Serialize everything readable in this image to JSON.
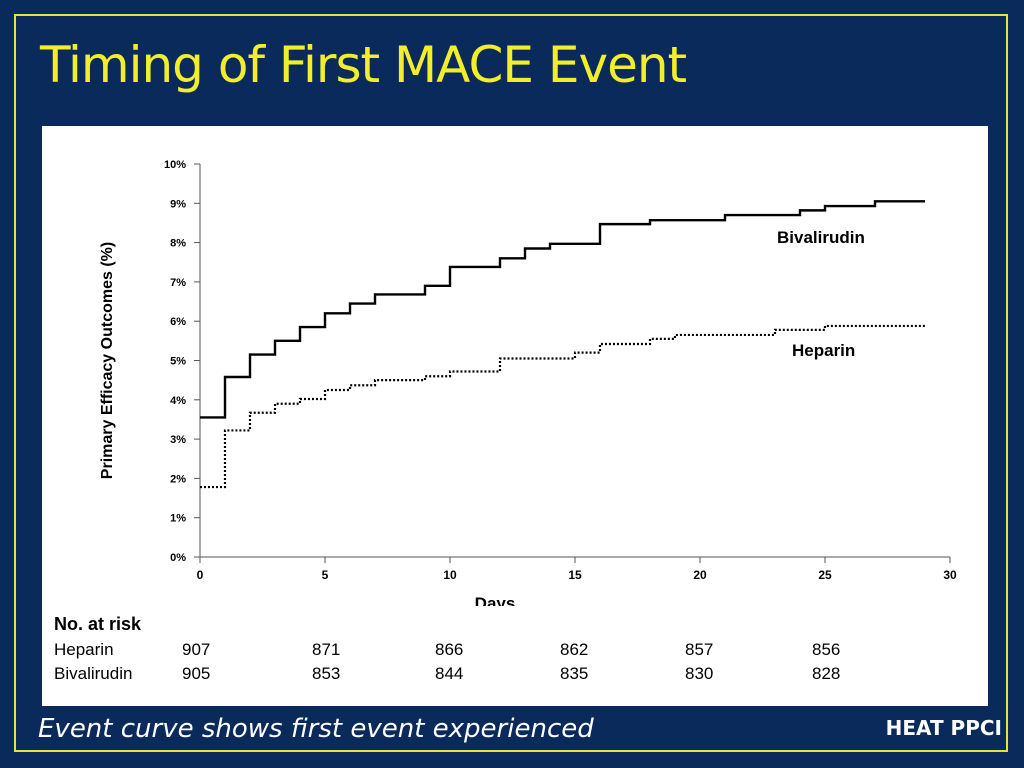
{
  "slide": {
    "title": "Timing of First MACE Event",
    "footnote": "Event curve shows first event experienced",
    "brand": "HEAT PPCI"
  },
  "chart_data": {
    "type": "line",
    "title": "",
    "xlabel": "Days",
    "ylabel": "Primary Efficacy Outcomes (%)",
    "xlim": [
      0,
      30
    ],
    "ylim": [
      0,
      10
    ],
    "xticks": [
      "0",
      "5",
      "10",
      "15",
      "20",
      "25",
      "30"
    ],
    "yticks": [
      "0%",
      "1%",
      "2%",
      "3%",
      "4%",
      "5%",
      "6%",
      "7%",
      "8%",
      "9%",
      "10%"
    ],
    "step": true,
    "series": [
      {
        "name": "Bivalirudin",
        "style": "solid",
        "color": "#000000",
        "points": [
          [
            0,
            3.55
          ],
          [
            1,
            4.58
          ],
          [
            2,
            5.15
          ],
          [
            3,
            5.5
          ],
          [
            4,
            5.85
          ],
          [
            5,
            6.2
          ],
          [
            6,
            6.45
          ],
          [
            7,
            6.68
          ],
          [
            9,
            6.9
          ],
          [
            10,
            7.38
          ],
          [
            12,
            7.6
          ],
          [
            13,
            7.85
          ],
          [
            14,
            7.97
          ],
          [
            16,
            8.47
          ],
          [
            18,
            8.57
          ],
          [
            21,
            8.7
          ],
          [
            24,
            8.82
          ],
          [
            25,
            8.93
          ],
          [
            27,
            9.05
          ],
          [
            29,
            9.05
          ]
        ]
      },
      {
        "name": "Heparin",
        "style": "dotted",
        "color": "#000000",
        "points": [
          [
            0,
            1.78
          ],
          [
            1,
            3.22
          ],
          [
            2,
            3.67
          ],
          [
            3,
            3.9
          ],
          [
            4,
            4.02
          ],
          [
            5,
            4.25
          ],
          [
            6,
            4.37
          ],
          [
            7,
            4.5
          ],
          [
            9,
            4.6
          ],
          [
            10,
            4.72
          ],
          [
            12,
            5.05
          ],
          [
            15,
            5.2
          ],
          [
            16,
            5.42
          ],
          [
            18,
            5.55
          ],
          [
            19,
            5.65
          ],
          [
            23,
            5.78
          ],
          [
            25,
            5.88
          ],
          [
            29,
            5.88
          ]
        ]
      }
    ]
  },
  "risk_table": {
    "header": "No. at risk",
    "rows": [
      {
        "label": "Heparin",
        "values": [
          "907",
          "871",
          "866",
          "862",
          "857",
          "856"
        ]
      },
      {
        "label": "Bivalirudin",
        "values": [
          "905",
          "853",
          "844",
          "835",
          "830",
          "828"
        ]
      }
    ]
  }
}
